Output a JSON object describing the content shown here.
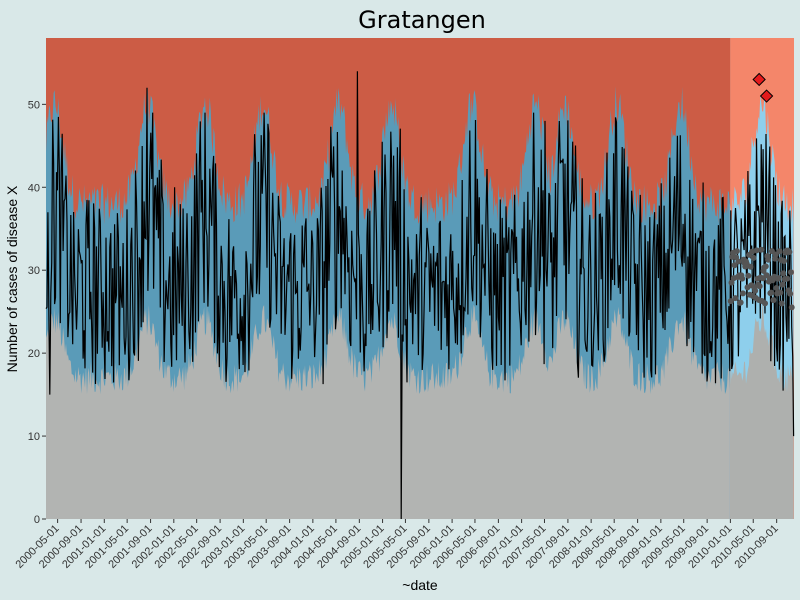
{
  "chart_data": {
    "type": "area",
    "title": "Gratangen",
    "xlabel": "~date",
    "ylabel": "Number of cases of disease X",
    "xlim": [
      "2000-03-01",
      "2010-12-01"
    ],
    "ylim": [
      0,
      58
    ],
    "y_ticks": [
      0,
      10,
      20,
      30,
      40,
      50
    ],
    "x_ticks": [
      "2000-05-01",
      "2000-09-01",
      "2001-01-01",
      "2001-05-01",
      "2001-09-01",
      "2002-01-01",
      "2002-05-01",
      "2002-09-01",
      "2003-01-01",
      "2003-05-01",
      "2003-09-01",
      "2004-01-01",
      "2004-05-01",
      "2004-09-01",
      "2005-01-01",
      "2005-05-01",
      "2005-09-01",
      "2006-01-01",
      "2006-05-01",
      "2006-09-01",
      "2007-01-01",
      "2007-05-01",
      "2007-09-01",
      "2008-01-01",
      "2008-05-01",
      "2008-09-01",
      "2009-01-01",
      "2009-05-01",
      "2009-09-01",
      "2010-01-01",
      "2010-05-01",
      "2010-09-01"
    ],
    "prediction_start": "2010-01-01",
    "colors": {
      "background": "#d9e8e8",
      "low_band": "#b2b4b2",
      "normal_band": "#5a9bb8",
      "high_band": "#cc5c45",
      "pred_low_band": "#aeb0ae",
      "pred_normal_band": "#8ecfec",
      "pred_high_band": "#f4866a",
      "observed_line": "#000000",
      "forecast_points": "#555555",
      "outbreak_marker": "#e31a1c"
    },
    "season_peak_months": [
      "2000-04",
      "2001-08",
      "2002-06",
      "2003-04",
      "2004-05",
      "2005-02",
      "2006-04",
      "2007-03",
      "2007-08",
      "2008-05",
      "2009-04",
      "2010-06"
    ],
    "band_lower_normal": {
      "trough": 17,
      "peak": 24
    },
    "band_upper_normal": {
      "trough": 38,
      "peak": 50
    },
    "observed_notable": [
      {
        "date": "2000-03-10",
        "value": 37
      },
      {
        "date": "2000-03-20",
        "value": 15
      },
      {
        "date": "2001-08-15",
        "value": 52
      },
      {
        "date": "2004-08-20",
        "value": 54
      },
      {
        "date": "2005-04-08",
        "value": 0
      },
      {
        "date": "2007-05-05",
        "value": 48
      },
      {
        "date": "2010-12-01",
        "value": 10
      }
    ],
    "outbreaks": [
      {
        "date": "2010-06-01",
        "value": 53
      },
      {
        "date": "2010-07-10",
        "value": 51
      }
    ],
    "forecast_level": 29
  }
}
